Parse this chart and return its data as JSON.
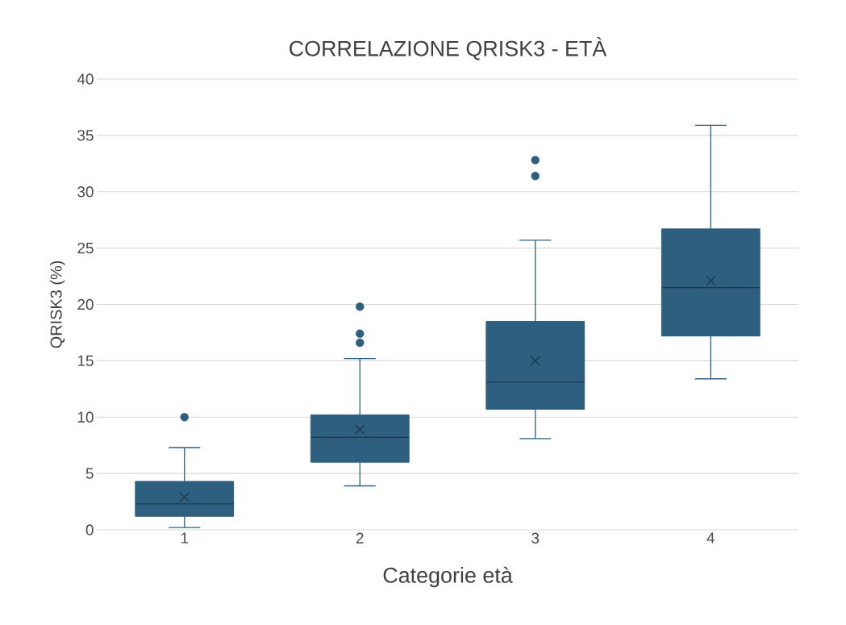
{
  "chart_data": {
    "type": "box",
    "title": "CORRELAZIONE QRISK3 - ETÀ",
    "xlabel": "Categorie età",
    "ylabel": "QRISK3 (%)",
    "categories": [
      "1",
      "2",
      "3",
      "4"
    ],
    "series": [
      {
        "color": "#2e5f7f",
        "boxes": [
          {
            "low": 0.2,
            "q1": 1.2,
            "median": 2.3,
            "q3": 4.3,
            "high": 7.3,
            "mean": 2.9,
            "outliers": [
              10.0
            ]
          },
          {
            "low": 3.9,
            "q1": 6.0,
            "median": 8.2,
            "q3": 10.2,
            "high": 15.2,
            "mean": 8.9,
            "outliers": [
              16.6,
              17.4,
              19.8
            ]
          },
          {
            "low": 8.1,
            "q1": 10.7,
            "median": 13.1,
            "q3": 18.5,
            "high": 25.7,
            "mean": 15.0,
            "outliers": [
              31.4,
              32.8
            ]
          },
          {
            "low": 13.4,
            "q1": 17.2,
            "median": 21.5,
            "q3": 26.7,
            "high": 35.9,
            "mean": 22.1
          }
        ]
      }
    ],
    "ylim": [
      0,
      40
    ],
    "yticks": [
      0,
      5,
      10,
      15,
      20,
      25,
      30,
      35,
      40
    ],
    "grid": "y"
  }
}
